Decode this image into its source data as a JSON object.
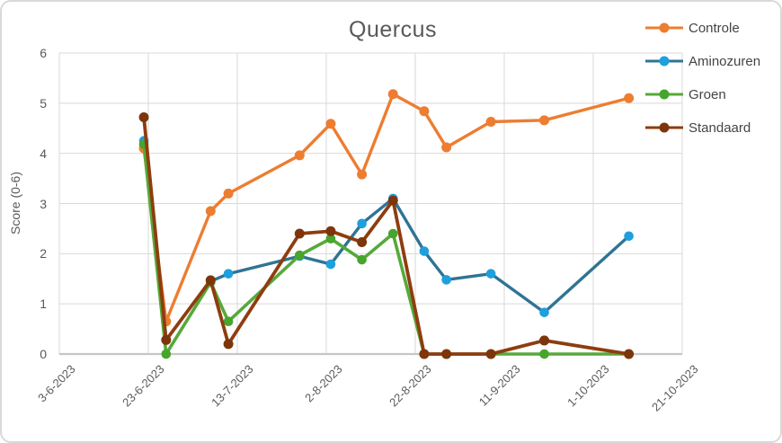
{
  "chart_data": {
    "type": "line",
    "title": "Quercus",
    "ylabel": "Score (0-6)",
    "ylim": [
      0,
      6
    ],
    "yticks": [
      0,
      1,
      2,
      3,
      4,
      5,
      6
    ],
    "x_axis": {
      "tick_labels": [
        "3-6-2023",
        "23-6-2023",
        "13-7-2023",
        "2-8-2023",
        "22-8-2023",
        "11-9-2023",
        "1-10-2023",
        "21-10-2023"
      ],
      "tick_interval_days": 20,
      "total_days": 140
    },
    "x_days": [
      19,
      24,
      34,
      38,
      54,
      61,
      68,
      75,
      82,
      87,
      97,
      109,
      128
    ],
    "series": [
      {
        "name": "Controle",
        "line_color": "#ED7D31",
        "marker_color": "#ED7D31",
        "line_width": 3.4,
        "marker_radius": 5.5,
        "values": [
          4.1,
          0.65,
          2.85,
          3.2,
          3.96,
          4.59,
          3.58,
          5.18,
          4.84,
          4.12,
          4.63,
          4.66,
          5.1
        ]
      },
      {
        "name": "Aminozuren",
        "line_color": "#2F7494",
        "marker_color": "#1F9FDB",
        "line_width": 3.4,
        "marker_radius": 5.3,
        "values": [
          4.25,
          null,
          1.45,
          1.6,
          1.95,
          1.79,
          2.6,
          3.1,
          2.05,
          1.48,
          1.6,
          0.83,
          2.35
        ]
      },
      {
        "name": "Groen",
        "line_color": "#56A93A",
        "marker_color": "#47A42C",
        "line_width": 3.6,
        "marker_radius": 5.3,
        "values": [
          4.18,
          0,
          1.43,
          0.65,
          1.97,
          2.3,
          1.88,
          2.4,
          0,
          0,
          0,
          0,
          0
        ]
      },
      {
        "name": "Standaard",
        "line_color": "#8E3D0F",
        "marker_color": "#7D350B",
        "line_width": 3.8,
        "marker_radius": 5.5,
        "values": [
          4.72,
          0.28,
          1.47,
          0.2,
          2.4,
          2.45,
          2.23,
          3.06,
          0,
          0,
          0,
          0.27,
          0
        ]
      }
    ],
    "legend_position": "right",
    "grid_color": "#D9D9D9",
    "axis_line_color": "#C6C6C6",
    "text_color": "#595959",
    "legend_text_color": "#444444"
  }
}
